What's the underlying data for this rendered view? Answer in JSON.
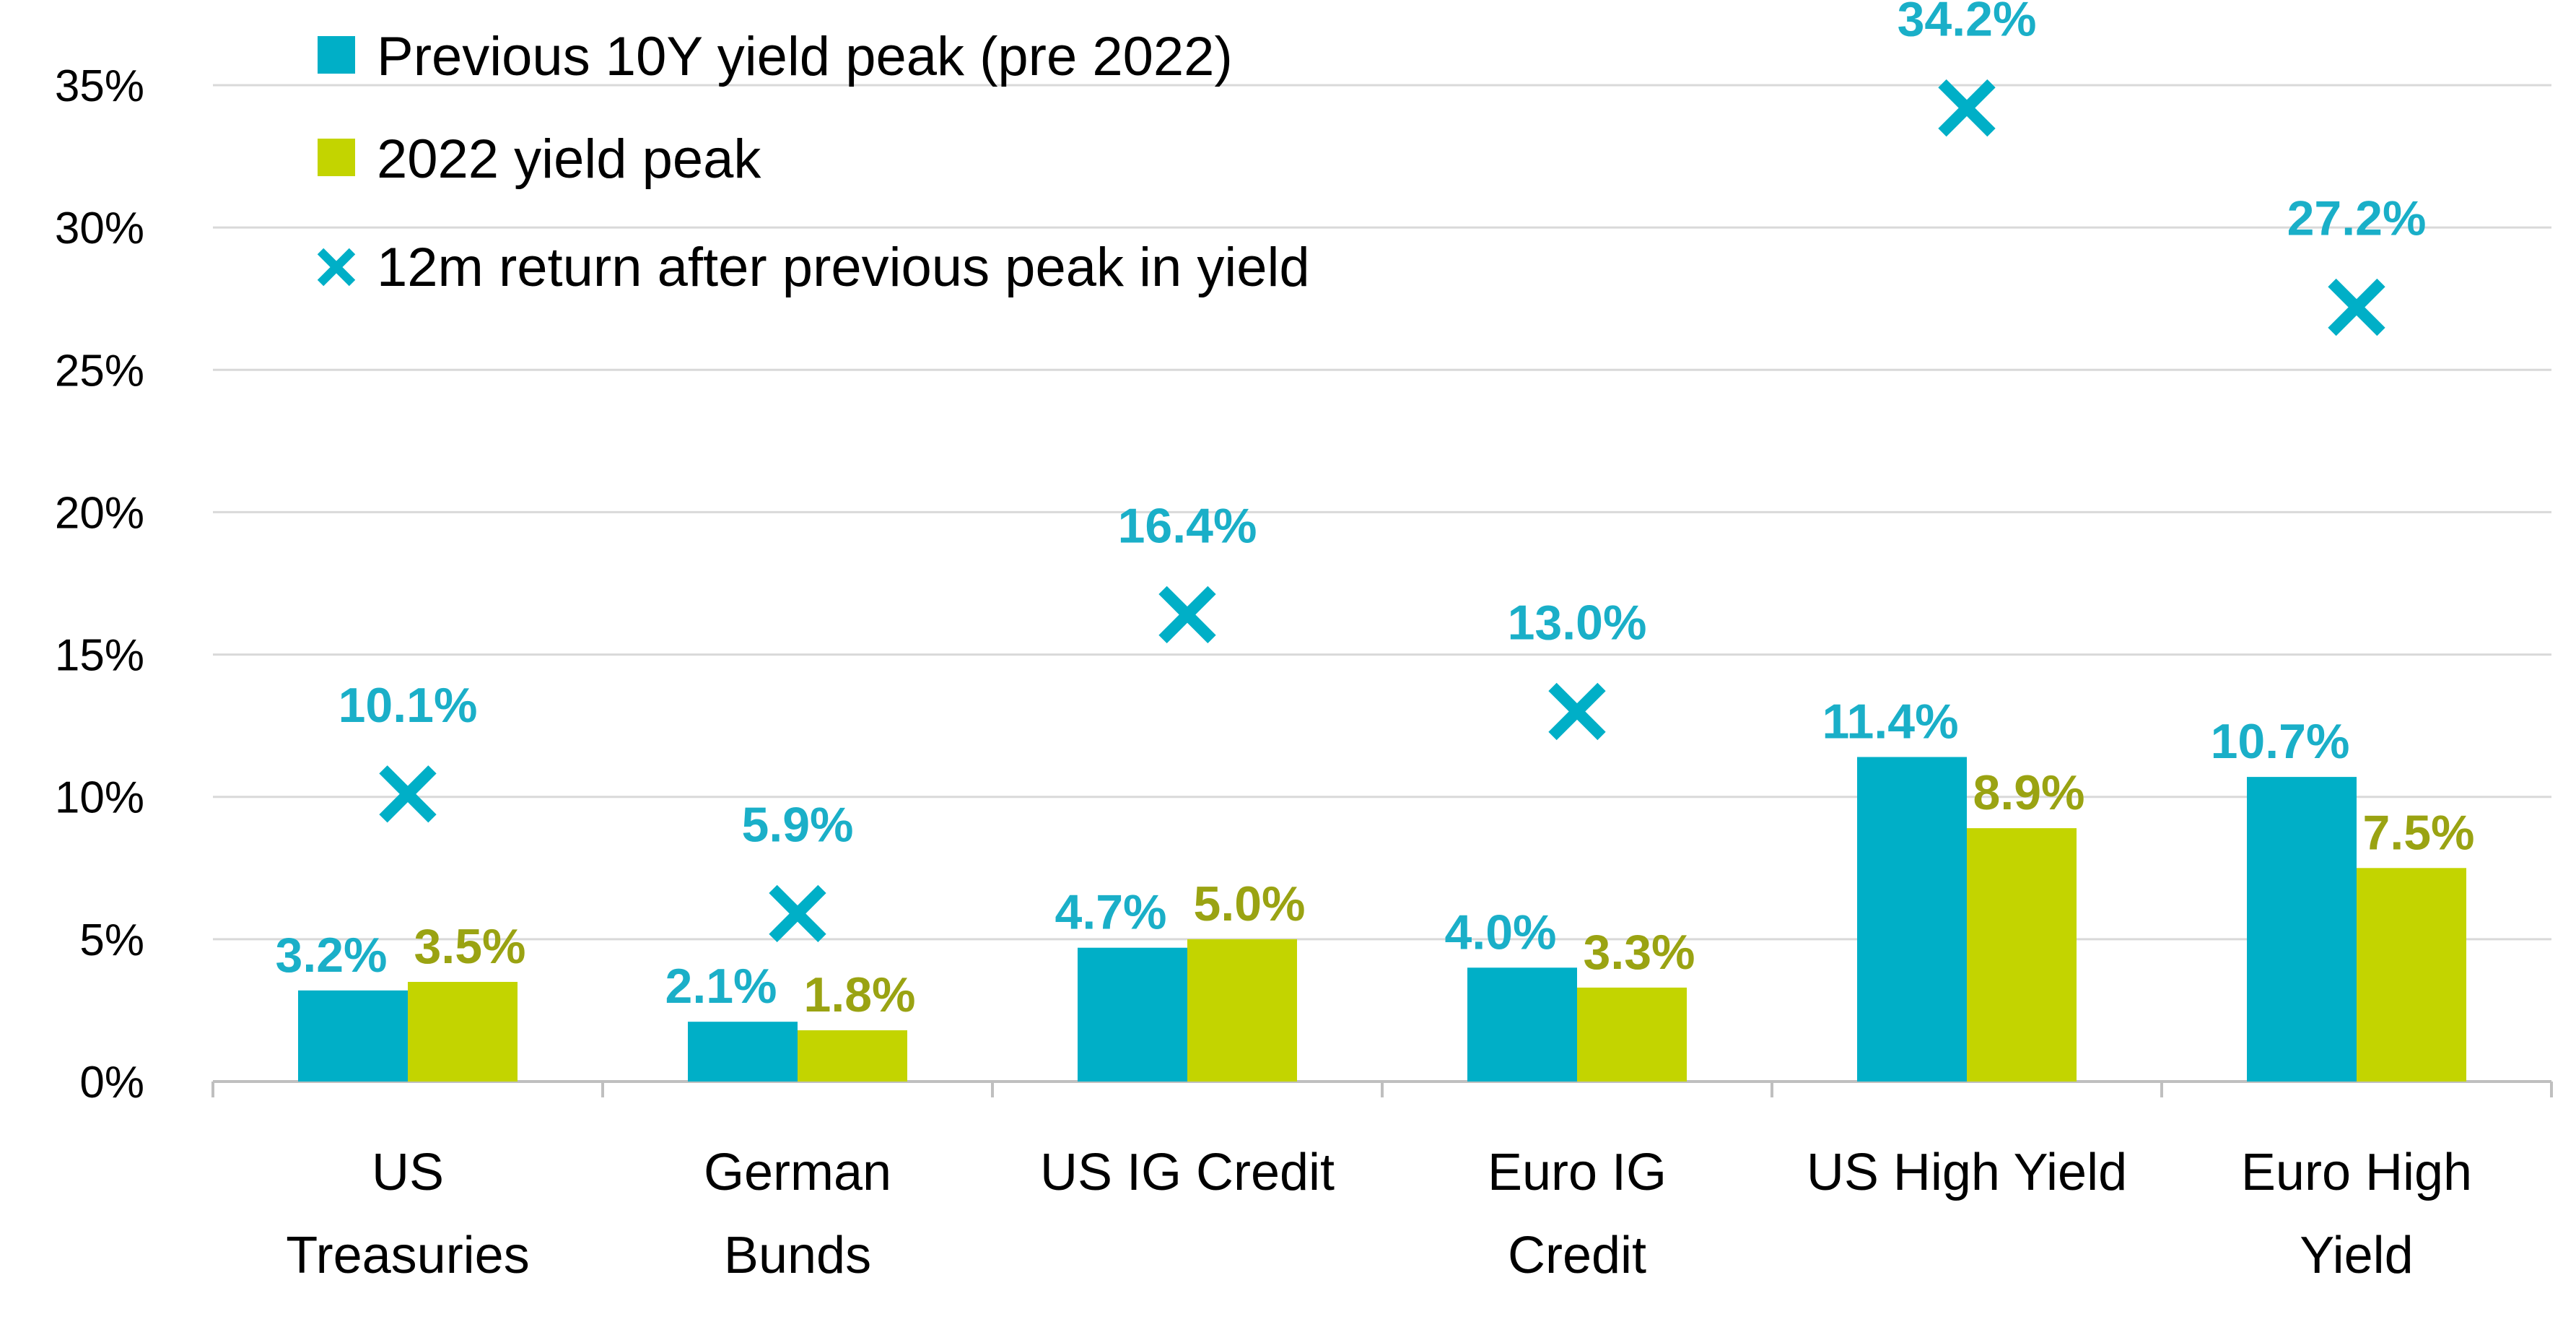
{
  "chart_data": {
    "type": "bar",
    "title": "",
    "xlabel": "",
    "ylabel": "",
    "ylim": [
      0,
      35
    ],
    "y_ticks": [
      "0%",
      "5%",
      "10%",
      "15%",
      "20%",
      "25%",
      "30%",
      "35%"
    ],
    "grid": true,
    "legend_placement": "top-left",
    "categories": [
      [
        "US",
        "Treasuries"
      ],
      [
        "German",
        "Bunds"
      ],
      [
        "US IG Credit"
      ],
      [
        "Euro IG",
        "Credit"
      ],
      [
        "US High Yield"
      ],
      [
        "Euro High",
        "Yield"
      ]
    ],
    "series": [
      {
        "name": "Previous 10Y yield peak (pre 2022)",
        "kind": "bar",
        "color": "#00AFC7",
        "label_color": "#1AAFC8",
        "values": [
          3.2,
          2.1,
          4.7,
          4.0,
          11.4,
          10.7
        ],
        "labels": [
          "3.2%",
          "2.1%",
          "4.7%",
          "4.0%",
          "11.4%",
          "10.7%"
        ]
      },
      {
        "name": "2022 yield peak",
        "kind": "bar",
        "color": "#C3D400",
        "label_color": "#9AA312",
        "values": [
          3.5,
          1.8,
          5.0,
          3.3,
          8.9,
          7.5
        ],
        "labels": [
          "3.5%",
          "1.8%",
          "5.0%",
          "3.3%",
          "8.9%",
          "7.5%"
        ]
      },
      {
        "name": "12m return after previous peak in yield",
        "kind": "marker",
        "marker": "x",
        "color": "#00AFC7",
        "label_color": "#1AAFC8",
        "values": [
          10.1,
          5.9,
          16.4,
          13.0,
          34.2,
          27.2
        ],
        "labels": [
          "10.1%",
          "5.9%",
          "16.4%",
          "13.0%",
          "34.2%",
          "27.2%"
        ]
      }
    ]
  }
}
